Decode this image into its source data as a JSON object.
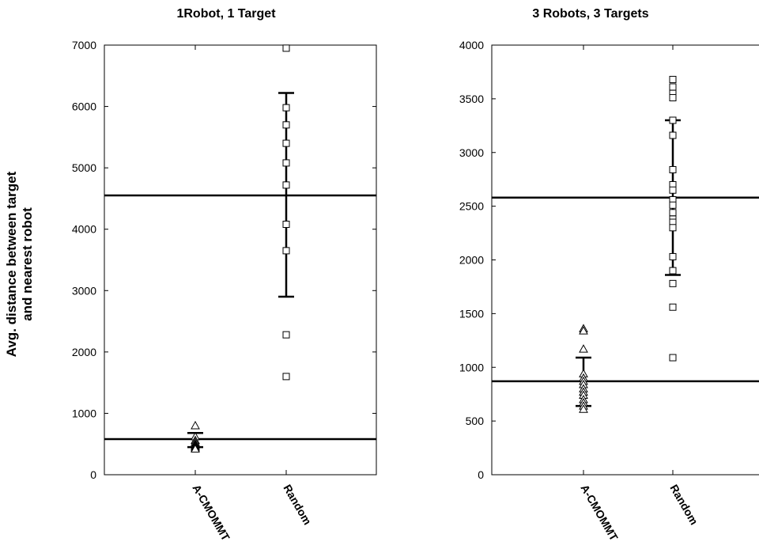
{
  "ylabel_line1": "Avg. distance between target",
  "ylabel_line2": "and nearest robot",
  "chart_data": [
    {
      "type": "scatter",
      "title": "1Robot, 1 Target",
      "categories": [
        "A-CMOMMT",
        "Random"
      ],
      "ylim": [
        0,
        7000
      ],
      "yticks": [
        0,
        1000,
        2000,
        3000,
        4000,
        5000,
        6000,
        7000
      ],
      "series": [
        {
          "category": "A-CMOMMT",
          "marker": "triangle",
          "values": [
            800,
            620,
            560,
            530,
            500,
            480,
            460,
            440,
            420
          ],
          "error_bar": [
            450,
            680
          ]
        },
        {
          "category": "Random",
          "marker": "square",
          "values": [
            6950,
            5980,
            5700,
            5400,
            5080,
            4720,
            4080,
            3650,
            2280,
            1600
          ],
          "error_bar": [
            2900,
            6220
          ]
        }
      ],
      "hlines": [
        4550,
        580
      ]
    },
    {
      "type": "scatter",
      "title": "3 Robots, 3 Targets",
      "categories": [
        "A-CMOMMT",
        "Random"
      ],
      "ylim": [
        0,
        4000
      ],
      "yticks": [
        0,
        500,
        1000,
        1500,
        2000,
        2500,
        3000,
        3500,
        4000
      ],
      "series": [
        {
          "category": "A-CMOMMT",
          "marker": "triangle",
          "values": [
            1360,
            1340,
            1170,
            940,
            900,
            870,
            840,
            800,
            770,
            740,
            700,
            670,
            640,
            610
          ],
          "error_bar": [
            640,
            1090
          ]
        },
        {
          "category": "Random",
          "marker": "square",
          "values": [
            3680,
            3610,
            3550,
            3510,
            3300,
            3160,
            2840,
            2700,
            2650,
            2560,
            2510,
            2440,
            2380,
            2350,
            2300,
            2030,
            1900,
            1780,
            1560,
            1090
          ],
          "error_bar": [
            1860,
            3300
          ]
        }
      ],
      "hlines": [
        2580,
        870
      ]
    }
  ]
}
